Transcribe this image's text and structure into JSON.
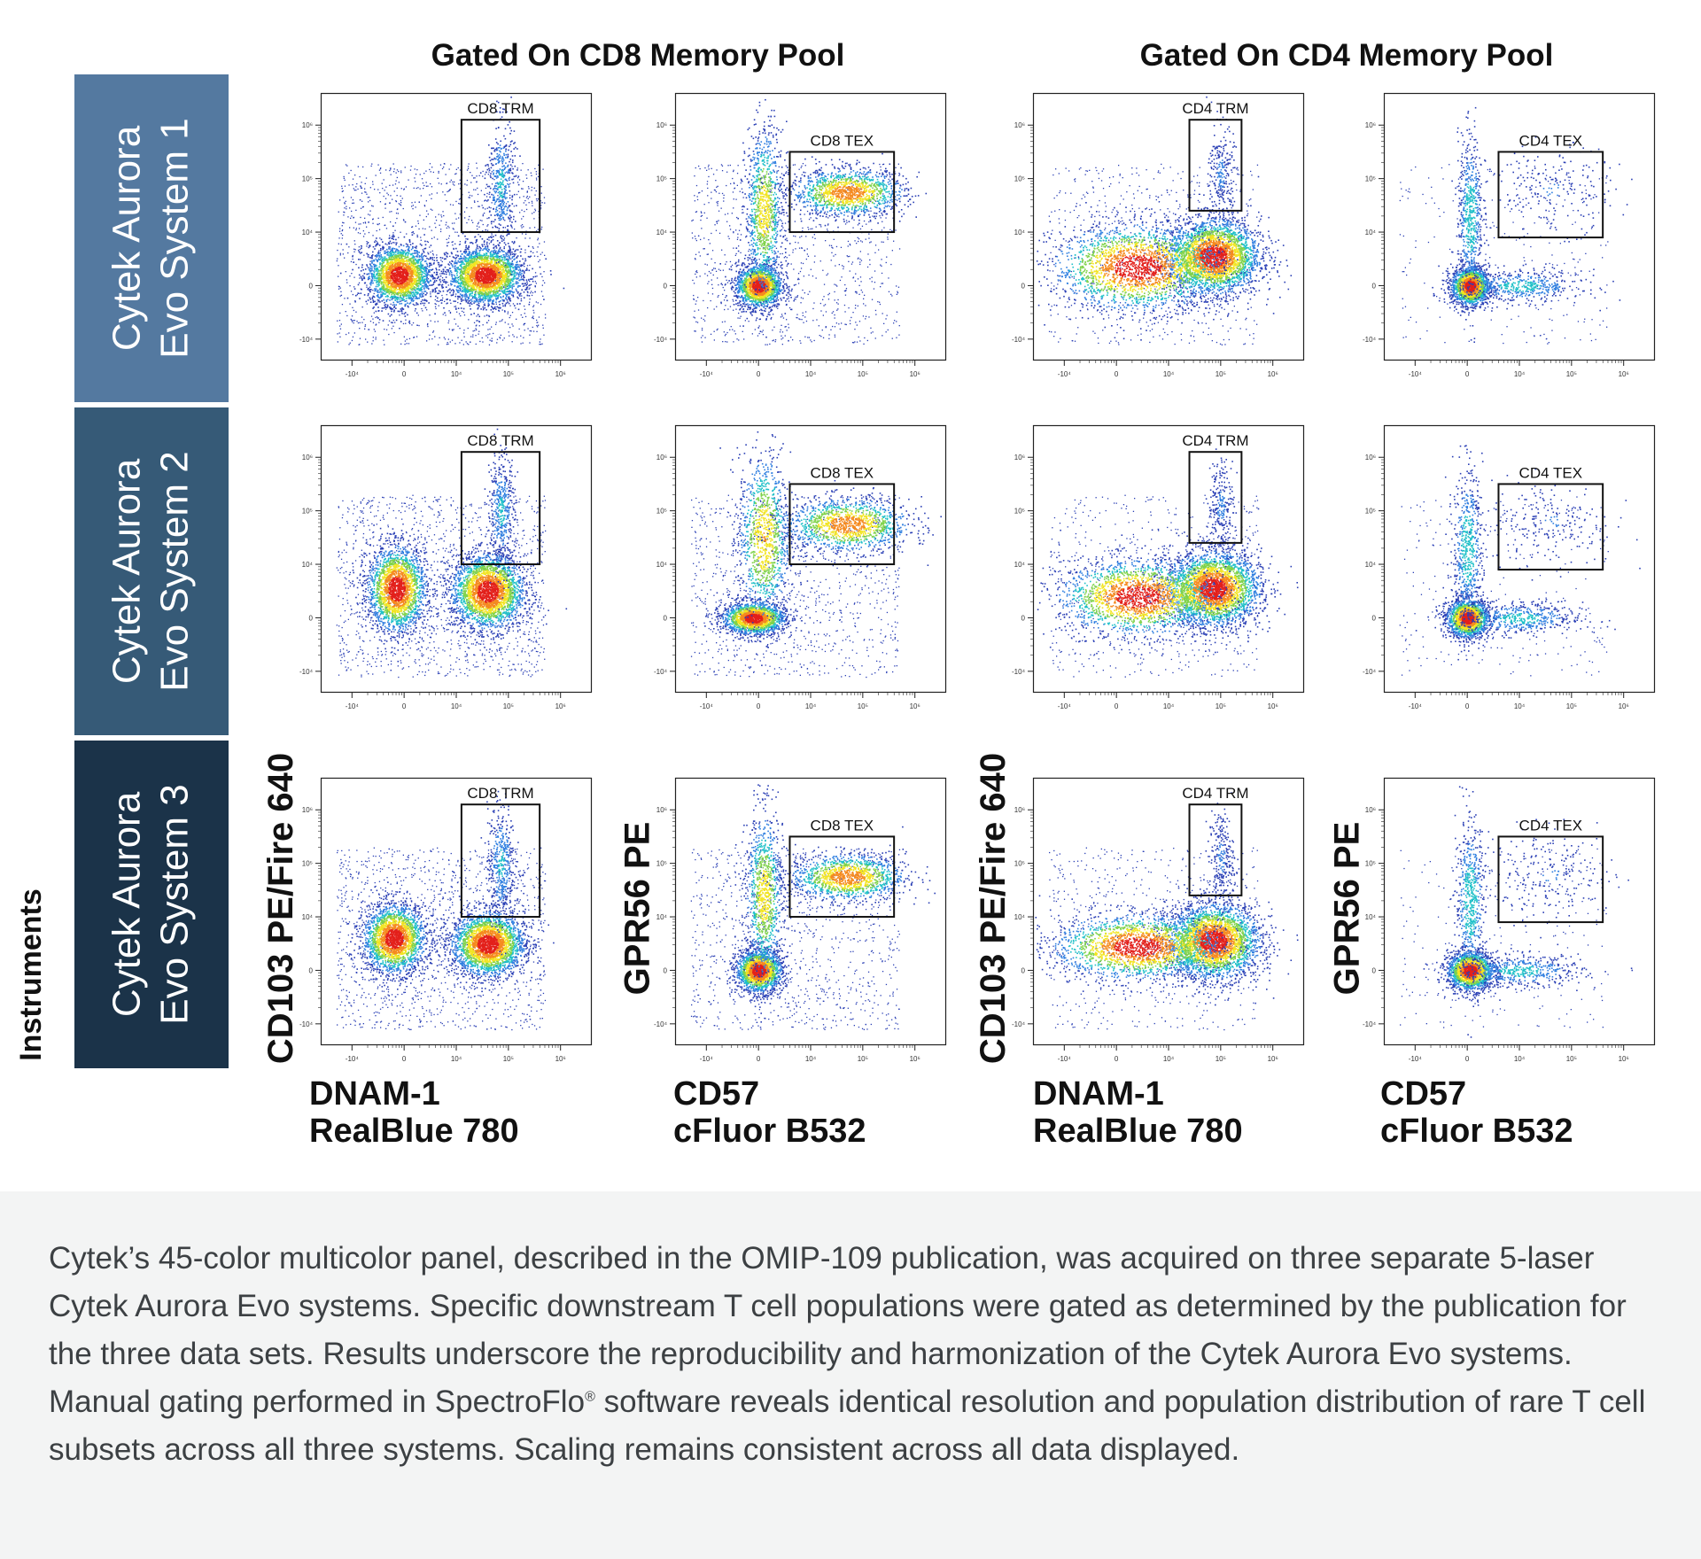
{
  "header": {
    "cd8_group_title": "Gated On CD8 Memory Pool",
    "cd4_group_title": "Gated On CD4 Memory Pool"
  },
  "rows": [
    {
      "label_line1": "Cytek Aurora",
      "label_line2": "Evo System 1",
      "color": "#5479a0"
    },
    {
      "label_line1": "Cytek Aurora",
      "label_line2": "Evo System 2",
      "color": "#365a77"
    },
    {
      "label_line1": "Cytek Aurora",
      "label_line2": "Evo System 3",
      "color": "#1b3349"
    }
  ],
  "instruments_label": "Instruments",
  "axis_labels": {
    "y_trm": "CD103 PE/Fire 640",
    "y_tex": "GPR56 PE",
    "x_trm_line1": "DNAM-1",
    "x_trm_line2": "RealBlue 780",
    "x_tex_line1": "CD57",
    "x_tex_line2": "cFluor B532"
  },
  "chart_data": {
    "type": "scatter",
    "description_style": "flow-cytometry density pseudocolor plots",
    "x_ticks": [
      "-10⁴",
      "0",
      "10⁴",
      "10⁵",
      "10⁶"
    ],
    "y_ticks": [
      "10⁶",
      "10⁵",
      "10⁴",
      "0",
      "-10⁴"
    ],
    "x_tick_values": [
      -1,
      0,
      1,
      2,
      3
    ],
    "y_tick_values": [
      3,
      2,
      1,
      0,
      -1
    ],
    "xlim": [
      -1.6,
      3.6
    ],
    "ylim": [
      -1.4,
      3.6
    ],
    "panels": [
      {
        "row": 0,
        "col": 0,
        "gate": "CD8 TRM",
        "gate_box": [
          1.1,
          2.6,
          1.0,
          3.1
        ],
        "populations": [
          {
            "cx": -0.1,
            "cy": 0.2,
            "sx": 0.3,
            "sy": 0.28,
            "n": 2200
          },
          {
            "cx": 1.55,
            "cy": 0.2,
            "sx": 0.35,
            "sy": 0.26,
            "n": 2600
          },
          {
            "cx": 1.85,
            "cy": 1.9,
            "sx": 0.13,
            "sy": 0.6,
            "n": 450
          }
        ],
        "background_n": 1400
      },
      {
        "row": 0,
        "col": 1,
        "gate": "CD8 TEX",
        "gate_box": [
          0.6,
          2.6,
          1.0,
          2.5
        ],
        "populations": [
          {
            "cx": 0.0,
            "cy": 0.0,
            "sx": 0.22,
            "sy": 0.2,
            "n": 1700
          },
          {
            "cx": 0.1,
            "cy": 1.4,
            "sx": 0.18,
            "sy": 0.8,
            "n": 1000
          },
          {
            "cx": 1.7,
            "cy": 1.75,
            "sx": 0.55,
            "sy": 0.22,
            "n": 1300
          }
        ],
        "background_n": 1000
      },
      {
        "row": 0,
        "col": 2,
        "gate": "CD4 TRM",
        "gate_box": [
          1.4,
          2.4,
          1.4,
          3.1
        ],
        "populations": [
          {
            "cx": 1.85,
            "cy": 0.55,
            "sx": 0.45,
            "sy": 0.35,
            "n": 3000
          },
          {
            "cx": 0.4,
            "cy": 0.35,
            "sx": 0.8,
            "sy": 0.4,
            "n": 2200
          },
          {
            "cx": 2.0,
            "cy": 2.1,
            "sx": 0.12,
            "sy": 0.45,
            "n": 250
          }
        ],
        "background_n": 600
      },
      {
        "row": 0,
        "col": 3,
        "gate": "CD4 TEX",
        "gate_box": [
          0.6,
          2.6,
          0.9,
          2.5
        ],
        "populations": [
          {
            "cx": 0.05,
            "cy": 0.0,
            "sx": 0.18,
            "sy": 0.18,
            "n": 1700
          },
          {
            "cx": 0.05,
            "cy": 1.3,
            "sx": 0.12,
            "sy": 0.75,
            "n": 600
          },
          {
            "cx": 1.0,
            "cy": 0.0,
            "sx": 0.6,
            "sy": 0.15,
            "n": 500
          },
          {
            "cx": 1.6,
            "cy": 1.8,
            "sx": 0.6,
            "sy": 0.4,
            "n": 220
          }
        ],
        "background_n": 250
      },
      {
        "row": 1,
        "col": 0,
        "gate": "CD8 TRM",
        "gate_box": [
          1.1,
          2.6,
          1.0,
          3.1
        ],
        "populations": [
          {
            "cx": -0.15,
            "cy": 0.55,
            "sx": 0.28,
            "sy": 0.4,
            "n": 2200
          },
          {
            "cx": 1.6,
            "cy": 0.5,
            "sx": 0.35,
            "sy": 0.35,
            "n": 2600
          },
          {
            "cx": 1.85,
            "cy": 2.0,
            "sx": 0.13,
            "sy": 0.55,
            "n": 450
          }
        ],
        "background_n": 1300
      },
      {
        "row": 1,
        "col": 1,
        "gate": "CD8 TEX",
        "gate_box": [
          0.6,
          2.6,
          1.0,
          2.5
        ],
        "populations": [
          {
            "cx": -0.1,
            "cy": 0.0,
            "sx": 0.3,
            "sy": 0.15,
            "n": 1700
          },
          {
            "cx": 0.1,
            "cy": 1.5,
            "sx": 0.25,
            "sy": 0.8,
            "n": 1100
          },
          {
            "cx": 1.7,
            "cy": 1.75,
            "sx": 0.6,
            "sy": 0.25,
            "n": 1300
          }
        ],
        "background_n": 1000
      },
      {
        "row": 1,
        "col": 2,
        "gate": "CD4 TRM",
        "gate_box": [
          1.4,
          2.4,
          1.4,
          3.1
        ],
        "populations": [
          {
            "cx": 1.85,
            "cy": 0.55,
            "sx": 0.45,
            "sy": 0.35,
            "n": 3000
          },
          {
            "cx": 0.4,
            "cy": 0.4,
            "sx": 0.75,
            "sy": 0.35,
            "n": 2000
          },
          {
            "cx": 2.0,
            "cy": 2.1,
            "sx": 0.12,
            "sy": 0.45,
            "n": 250
          }
        ],
        "background_n": 600
      },
      {
        "row": 1,
        "col": 3,
        "gate": "CD4 TEX",
        "gate_box": [
          0.6,
          2.6,
          0.9,
          2.5
        ],
        "populations": [
          {
            "cx": 0.0,
            "cy": 0.0,
            "sx": 0.2,
            "sy": 0.18,
            "n": 1700
          },
          {
            "cx": 0.0,
            "cy": 1.3,
            "sx": 0.14,
            "sy": 0.75,
            "n": 600
          },
          {
            "cx": 1.0,
            "cy": 0.0,
            "sx": 0.6,
            "sy": 0.15,
            "n": 500
          },
          {
            "cx": 1.6,
            "cy": 1.8,
            "sx": 0.6,
            "sy": 0.4,
            "n": 220
          }
        ],
        "background_n": 250
      },
      {
        "row": 2,
        "col": 0,
        "gate": "CD8 TRM",
        "gate_box": [
          1.1,
          2.6,
          1.0,
          3.1
        ],
        "populations": [
          {
            "cx": -0.2,
            "cy": 0.6,
            "sx": 0.3,
            "sy": 0.32,
            "n": 2200
          },
          {
            "cx": 1.6,
            "cy": 0.5,
            "sx": 0.35,
            "sy": 0.3,
            "n": 2600
          },
          {
            "cx": 1.85,
            "cy": 2.0,
            "sx": 0.13,
            "sy": 0.55,
            "n": 450
          }
        ],
        "background_n": 1300
      },
      {
        "row": 2,
        "col": 1,
        "gate": "CD8 TEX",
        "gate_box": [
          0.6,
          2.6,
          1.0,
          2.5
        ],
        "populations": [
          {
            "cx": 0.0,
            "cy": 0.0,
            "sx": 0.22,
            "sy": 0.2,
            "n": 1700
          },
          {
            "cx": 0.1,
            "cy": 1.4,
            "sx": 0.18,
            "sy": 0.8,
            "n": 1000
          },
          {
            "cx": 1.7,
            "cy": 1.75,
            "sx": 0.55,
            "sy": 0.22,
            "n": 1300
          }
        ],
        "background_n": 1000
      },
      {
        "row": 2,
        "col": 2,
        "gate": "CD4 TRM",
        "gate_box": [
          1.4,
          2.4,
          1.4,
          3.1
        ],
        "populations": [
          {
            "cx": 1.85,
            "cy": 0.55,
            "sx": 0.45,
            "sy": 0.35,
            "n": 3000
          },
          {
            "cx": 0.4,
            "cy": 0.45,
            "sx": 0.8,
            "sy": 0.3,
            "n": 2000
          },
          {
            "cx": 2.0,
            "cy": 2.1,
            "sx": 0.12,
            "sy": 0.45,
            "n": 250
          }
        ],
        "background_n": 600
      },
      {
        "row": 2,
        "col": 3,
        "gate": "CD4 TEX",
        "gate_box": [
          0.6,
          2.6,
          0.9,
          2.5
        ],
        "populations": [
          {
            "cx": 0.05,
            "cy": 0.0,
            "sx": 0.22,
            "sy": 0.18,
            "n": 1700
          },
          {
            "cx": 0.05,
            "cy": 1.3,
            "sx": 0.14,
            "sy": 0.75,
            "n": 600
          },
          {
            "cx": 1.0,
            "cy": 0.0,
            "sx": 0.6,
            "sy": 0.15,
            "n": 500
          },
          {
            "cx": 1.6,
            "cy": 1.8,
            "sx": 0.6,
            "sy": 0.4,
            "n": 220
          }
        ],
        "background_n": 250
      }
    ]
  },
  "caption": {
    "part1": "Cytek’s 45-color multicolor panel, described in the OMIP-109 publication, was acquired on three separate 5-laser Cytek Aurora Evo systems. Specific downstream T cell populations were gated as determined by the publication for the three data sets. Results underscore the reproducibility and harmonization of the Cytek Aurora Evo systems. Manual gating performed in SpectroFlo",
    "registered": "®",
    "part2": " software reveals identical resolution and population distribution of rare T cell subsets across all three systems. Scaling remains consistent across all data displayed."
  }
}
